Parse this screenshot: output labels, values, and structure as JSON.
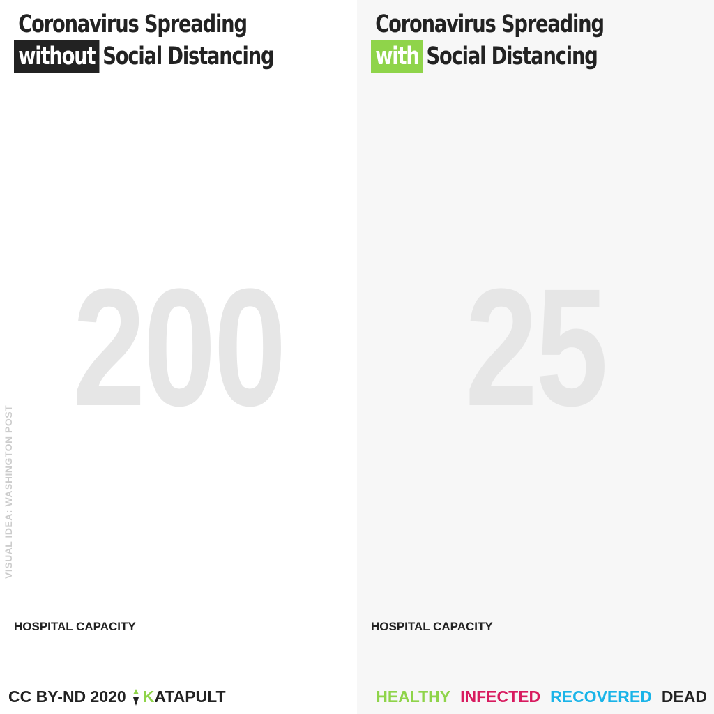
{
  "left_panel": {
    "title_line1": "Coronavirus Spreading",
    "title_highlight": "without",
    "title_rest": "Social Distancing",
    "hospital_capacity_number": "200",
    "capacity_label": "HOSPITAL CAPACITY"
  },
  "right_panel": {
    "title_line1": "Coronavirus Spreading",
    "title_highlight": "with",
    "title_rest": "Social Distancing",
    "hospital_capacity_number": "25",
    "capacity_label": "HOSPITAL CAPACITY"
  },
  "side_credit": "VISUAL IDEA: WASHINGTON POST",
  "footer": {
    "license": "CC BY-ND 2020",
    "brand_initial": "K",
    "brand_rest": "ATAPULT"
  },
  "legend": [
    {
      "label": "HEALTHY",
      "color": "#8fd44a"
    },
    {
      "label": "INFECTED",
      "color": "#d81b5f"
    },
    {
      "label": "RECOVERED",
      "color": "#1ab4e8"
    },
    {
      "label": "DEAD",
      "color": "#222222"
    }
  ]
}
